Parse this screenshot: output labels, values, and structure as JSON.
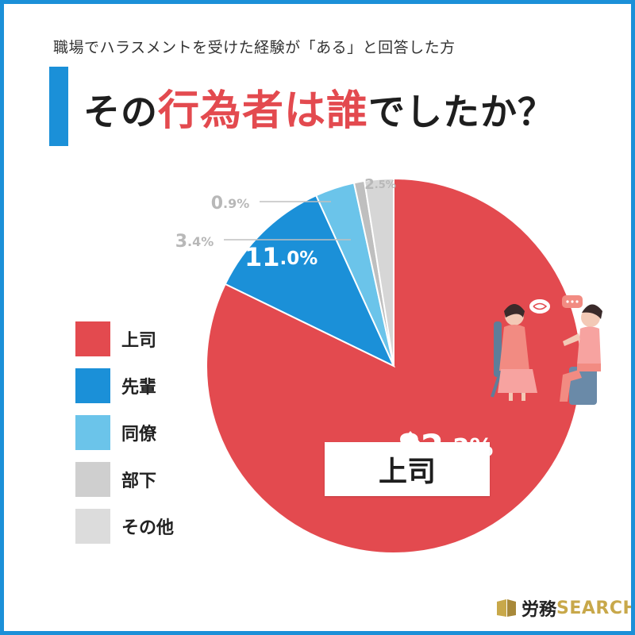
{
  "header": {
    "subtitle": "職場でハラスメントを受けた経験が「ある」と回答した方",
    "title_before": "その",
    "title_highlight": "行為者は誰",
    "title_after": "でしたか？"
  },
  "colors": {
    "frame": "#1b90d8",
    "highlight": "#e34a4f"
  },
  "chart_data": {
    "type": "pie",
    "start": "12 o'clock, clockwise",
    "slices": [
      {
        "name": "上司",
        "value": 82.2,
        "display_num": "82",
        "display_dec": ".2%",
        "color": "#e34a4f",
        "label_color": "#ffffff"
      },
      {
        "name": "先輩",
        "value": 11.0,
        "display_num": "11",
        "display_dec": ".0%",
        "color": "#1b90d8",
        "label_color": "#ffffff"
      },
      {
        "name": "同僚",
        "value": 3.4,
        "display_num": "3",
        "display_dec": ".4%",
        "color": "#6bc4ea",
        "label_color": "#b8b8b8"
      },
      {
        "name": "部下",
        "value": 0.9,
        "display_num": "0",
        "display_dec": ".9%",
        "color": "#bfbfbf",
        "label_color": "#b8b8b8"
      },
      {
        "name": "その他",
        "value": 2.5,
        "display_num": "2",
        "display_dec": ".5%",
        "color": "#d6d6d6",
        "label_color": "#b8b8b8"
      }
    ]
  },
  "legend": [
    {
      "label": "上司",
      "color": "#e34a4f"
    },
    {
      "label": "先輩",
      "color": "#1b90d8"
    },
    {
      "label": "同僚",
      "color": "#6bc4ea"
    },
    {
      "label": "部下",
      "color": "#cfcfcf"
    },
    {
      "label": "その他",
      "color": "#dcdcdc"
    }
  ],
  "callout": {
    "label": "上司"
  },
  "brand": {
    "jp": "労務",
    "en": "SEARCH"
  }
}
